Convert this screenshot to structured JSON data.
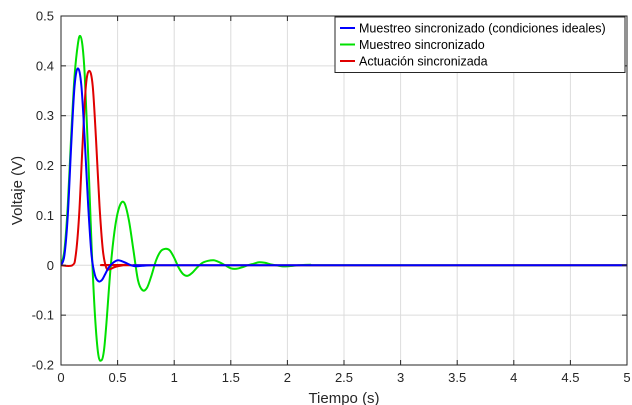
{
  "chart_data": {
    "type": "line",
    "xlabel": "Tiempo (s)",
    "ylabel": "Voltaje (V)",
    "xlim": [
      0,
      5
    ],
    "ylim": [
      -0.2,
      0.5
    ],
    "xticks": [
      0,
      0.5,
      1,
      1.5,
      2,
      2.5,
      3,
      3.5,
      4,
      4.5,
      5
    ],
    "xtick_labels": [
      "0",
      "0.5",
      "1",
      "1.5",
      "2",
      "2.5",
      "3",
      "3.5",
      "4",
      "4.5",
      "5"
    ],
    "yticks": [
      -0.2,
      -0.1,
      0,
      0.1,
      0.2,
      0.3,
      0.4,
      0.5
    ],
    "ytick_labels": [
      "-0.2",
      "-0.1",
      "0",
      "0.1",
      "0.2",
      "0.3",
      "0.4",
      "0.5"
    ],
    "grid": true,
    "legend_position": "top-right",
    "series": [
      {
        "name": "Muestreo sincronizado (condiciones ideales)",
        "color": "#0000ff",
        "x": [
          0,
          0.03,
          0.06,
          0.09,
          0.12,
          0.15,
          0.18,
          0.21,
          0.24,
          0.27,
          0.3,
          0.33,
          0.36,
          0.39,
          0.42,
          0.46,
          0.5,
          0.54,
          0.58,
          0.62,
          0.66,
          0.72,
          0.8,
          1.0,
          5.0
        ],
        "y": [
          0,
          0.02,
          0.1,
          0.24,
          0.36,
          0.395,
          0.36,
          0.25,
          0.12,
          0.02,
          -0.02,
          -0.032,
          -0.03,
          -0.018,
          -0.005,
          0.005,
          0.01,
          0.008,
          0.004,
          0.0,
          -0.002,
          -0.001,
          0,
          0,
          0
        ]
      },
      {
        "name": "Muestreo sincronizado",
        "color": "#00e000",
        "x": [
          0,
          0.03,
          0.06,
          0.09,
          0.12,
          0.15,
          0.17,
          0.19,
          0.21,
          0.24,
          0.27,
          0.3,
          0.33,
          0.36,
          0.38,
          0.4,
          0.44,
          0.48,
          0.52,
          0.56,
          0.6,
          0.64,
          0.68,
          0.72,
          0.76,
          0.8,
          0.84,
          0.88,
          0.92,
          0.96,
          1.0,
          1.04,
          1.08,
          1.12,
          1.16,
          1.2,
          1.25,
          1.3,
          1.35,
          1.4,
          1.45,
          1.5,
          1.55,
          1.6,
          1.65,
          1.7,
          1.75,
          1.8,
          1.85,
          1.9,
          1.95,
          2.0,
          2.1,
          2.2,
          2.4,
          5.0
        ],
        "y": [
          0,
          0.03,
          0.12,
          0.26,
          0.38,
          0.445,
          0.46,
          0.44,
          0.38,
          0.22,
          0.04,
          -0.1,
          -0.18,
          -0.19,
          -0.17,
          -0.12,
          0.0,
          0.08,
          0.12,
          0.125,
          0.09,
          0.03,
          -0.03,
          -0.05,
          -0.045,
          -0.02,
          0.01,
          0.028,
          0.033,
          0.03,
          0.015,
          -0.005,
          -0.018,
          -0.021,
          -0.015,
          -0.005,
          0.005,
          0.009,
          0.01,
          0.006,
          0.0,
          -0.006,
          -0.007,
          -0.004,
          0.0,
          0.003,
          0.006,
          0.005,
          0.002,
          0.0,
          -0.002,
          -0.002,
          0.0,
          0.001,
          0,
          0
        ]
      },
      {
        "name": "Actuación sincronizada",
        "color": "#e00000",
        "x": [
          0,
          0.1,
          0.13,
          0.16,
          0.19,
          0.22,
          0.25,
          0.28,
          0.31,
          0.34,
          0.37,
          0.4,
          0.43,
          0.46,
          0.5,
          0.55,
          0.6,
          0.7,
          5.0
        ],
        "y": [
          0,
          0,
          0.02,
          0.1,
          0.24,
          0.36,
          0.39,
          0.36,
          0.25,
          0.12,
          0.03,
          -0.005,
          -0.008,
          -0.005,
          -0.002,
          0.0,
          0.001,
          0,
          0
        ]
      }
    ]
  }
}
